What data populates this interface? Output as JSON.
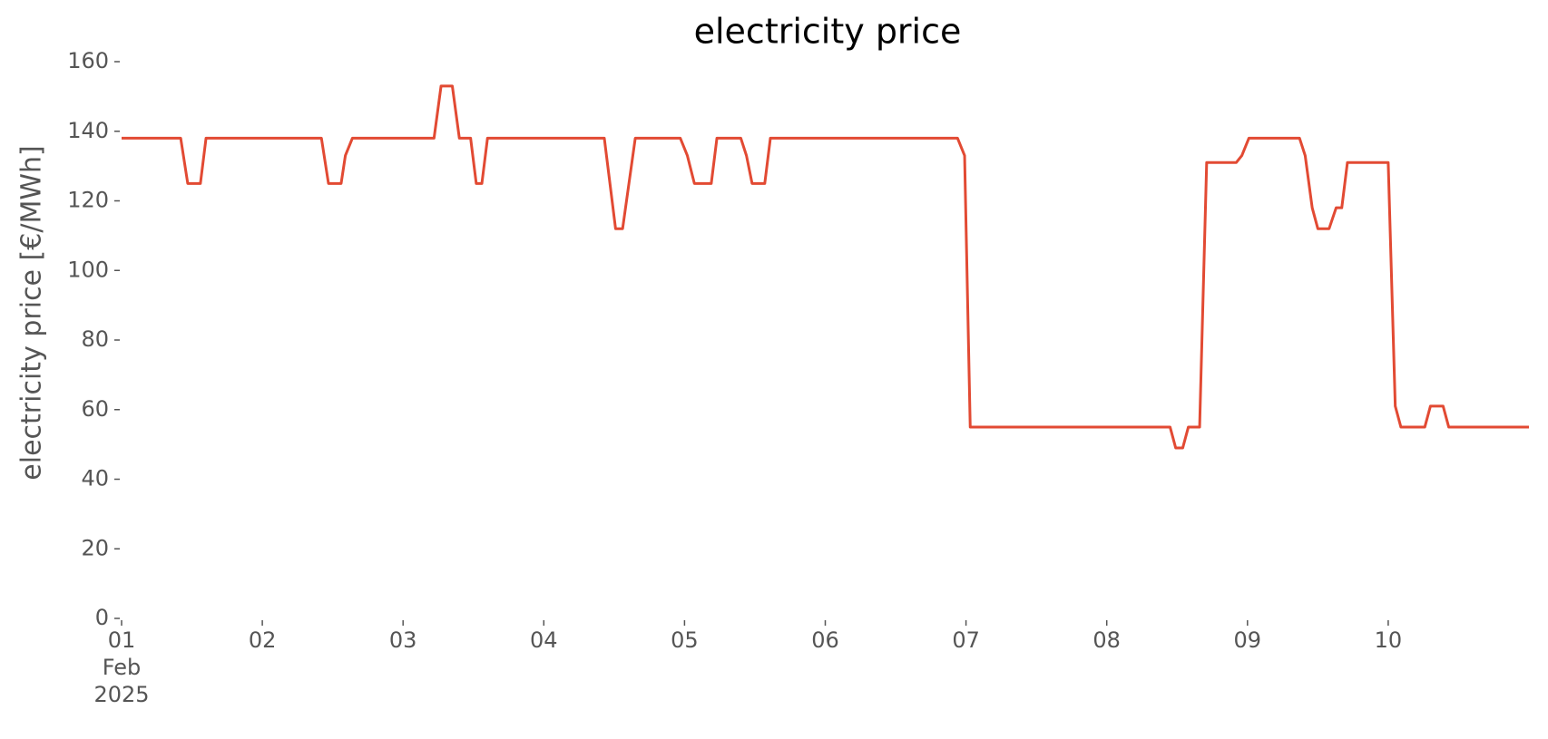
{
  "chart_data": {
    "type": "line",
    "title": "electricity price",
    "ylabel": "electricity price [€/MWh]",
    "x": [
      1.0,
      1.42,
      1.47,
      1.56,
      1.6,
      2.42,
      2.47,
      2.56,
      2.59,
      2.64,
      3.22,
      3.27,
      3.35,
      3.4,
      3.48,
      3.52,
      3.56,
      3.6,
      4.43,
      4.51,
      4.56,
      4.65,
      4.97,
      5.02,
      5.07,
      5.19,
      5.23,
      5.4,
      5.44,
      5.48,
      5.57,
      5.61,
      6.94,
      6.99,
      7.03,
      8.45,
      8.49,
      8.54,
      8.58,
      8.66,
      8.71,
      8.92,
      8.96,
      9.01,
      9.37,
      9.41,
      9.46,
      9.5,
      9.58,
      9.63,
      9.67,
      9.71,
      10.0,
      10.05,
      10.09,
      10.26,
      10.3,
      10.39,
      10.43,
      11.0
    ],
    "series": [
      {
        "name": "electricity price",
        "color": "#e24a33",
        "values": [
          138,
          138,
          125,
          125,
          138,
          138,
          125,
          125,
          133,
          138,
          138,
          153,
          153,
          138,
          138,
          125,
          125,
          138,
          138,
          112,
          112,
          138,
          138,
          133,
          125,
          125,
          138,
          138,
          133,
          125,
          125,
          138,
          138,
          133,
          55,
          55,
          49,
          49,
          55,
          55,
          131,
          131,
          133,
          138,
          138,
          133,
          118,
          112,
          112,
          118,
          118,
          131,
          131,
          61,
          55,
          55,
          61,
          61,
          55,
          55
        ]
      }
    ],
    "xlim": [
      1,
      11
    ],
    "xticks": [
      {
        "value": 1,
        "label": "01\nFeb\n2025"
      },
      {
        "value": 2,
        "label": "02"
      },
      {
        "value": 3,
        "label": "03"
      },
      {
        "value": 4,
        "label": "04"
      },
      {
        "value": 5,
        "label": "05"
      },
      {
        "value": 6,
        "label": "06"
      },
      {
        "value": 7,
        "label": "07"
      },
      {
        "value": 8,
        "label": "08"
      },
      {
        "value": 9,
        "label": "09"
      },
      {
        "value": 10,
        "label": "10"
      }
    ],
    "ylim": [
      0,
      160
    ],
    "yticks": [
      0,
      20,
      40,
      60,
      80,
      100,
      120,
      140,
      160
    ],
    "grid": false
  }
}
